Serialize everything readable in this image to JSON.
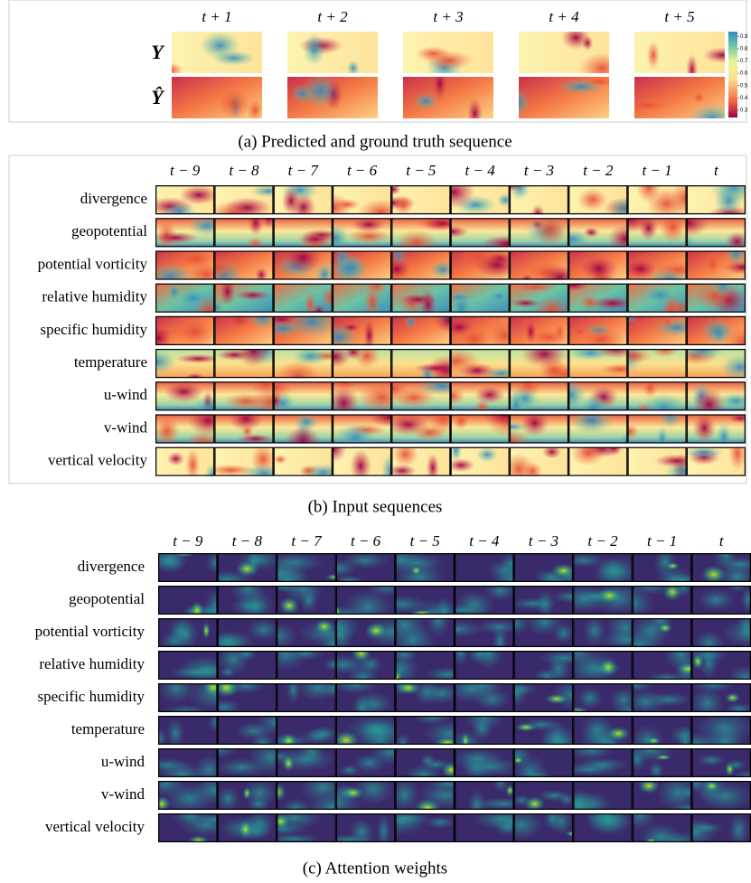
{
  "panel_a": {
    "columns": [
      "t + 1",
      "t + 2",
      "t + 3",
      "t + 4",
      "t + 5"
    ],
    "rows": [
      "Y",
      "Ŷ"
    ],
    "colorbar": {
      "range": [
        0.24,
        0.94
      ],
      "ticks": [
        0.9,
        0.8,
        0.7,
        0.6,
        0.5,
        0.4,
        0.3
      ]
    },
    "caption": "(a) Predicted and ground truth sequence"
  },
  "panel_b": {
    "columns": [
      "t − 9",
      "t − 8",
      "t − 7",
      "t − 6",
      "t − 5",
      "t − 4",
      "t − 3",
      "t − 2",
      "t − 1",
      "t"
    ],
    "rows": [
      "divergence",
      "geopotential",
      "potential vorticity",
      "relative humidity",
      "specific humidity",
      "temperature",
      "u-wind",
      "v-wind",
      "vertical velocity"
    ],
    "caption": "(b) Input sequences"
  },
  "panel_c": {
    "columns": [
      "t − 9",
      "t − 8",
      "t − 7",
      "t − 6",
      "t − 5",
      "t − 4",
      "t − 3",
      "t − 2",
      "t − 1",
      "t"
    ],
    "rows": [
      "divergence",
      "geopotential",
      "potential vorticity",
      "relative humidity",
      "specific humidity",
      "temperature",
      "u-wind",
      "v-wind",
      "vertical velocity"
    ],
    "caption": "(c) Attention weights"
  }
}
